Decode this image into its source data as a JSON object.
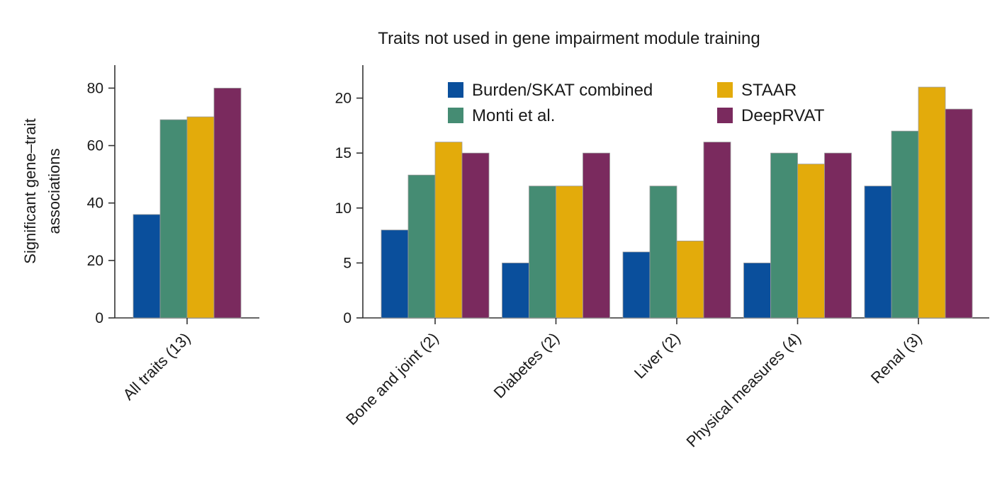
{
  "chart_data": [
    {
      "type": "bar",
      "title": "",
      "xlabel": "",
      "ylabel_lines": [
        "Significant gene–trait",
        "associations"
      ],
      "ylim": [
        0,
        88
      ],
      "yticks": [
        0,
        20,
        40,
        60,
        80
      ],
      "categories": [
        "All traits (13)"
      ],
      "series": [
        {
          "name": "Burden/SKAT combined",
          "color": "#0a4f9c",
          "values": [
            36
          ]
        },
        {
          "name": "Monti et al.",
          "color": "#458c73",
          "values": [
            69
          ]
        },
        {
          "name": "STAAR",
          "color": "#e3ab0b",
          "values": [
            70
          ]
        },
        {
          "name": "DeepRVAT",
          "color": "#7a2a5e",
          "values": [
            80
          ]
        }
      ]
    },
    {
      "type": "bar",
      "title": "Traits not used in gene impairment module training",
      "xlabel": "",
      "ylabel": "",
      "ylim": [
        0,
        23
      ],
      "yticks": [
        0,
        5,
        10,
        15,
        20
      ],
      "categories": [
        "Bone and joint (2)",
        "Diabetes (2)",
        "Liver (2)",
        "Physical measures (4)",
        "Renal (3)"
      ],
      "series": [
        {
          "name": "Burden/SKAT combined",
          "color": "#0a4f9c",
          "values": [
            8,
            5,
            6,
            5,
            12
          ]
        },
        {
          "name": "Monti et al.",
          "color": "#458c73",
          "values": [
            13,
            12,
            12,
            15,
            17
          ]
        },
        {
          "name": "STAAR",
          "color": "#e3ab0b",
          "values": [
            16,
            12,
            7,
            14,
            21
          ]
        },
        {
          "name": "DeepRVAT",
          "color": "#7a2a5e",
          "values": [
            15,
            15,
            16,
            15,
            19
          ]
        }
      ],
      "legend_placement": "top, inside plot, two columns"
    }
  ]
}
